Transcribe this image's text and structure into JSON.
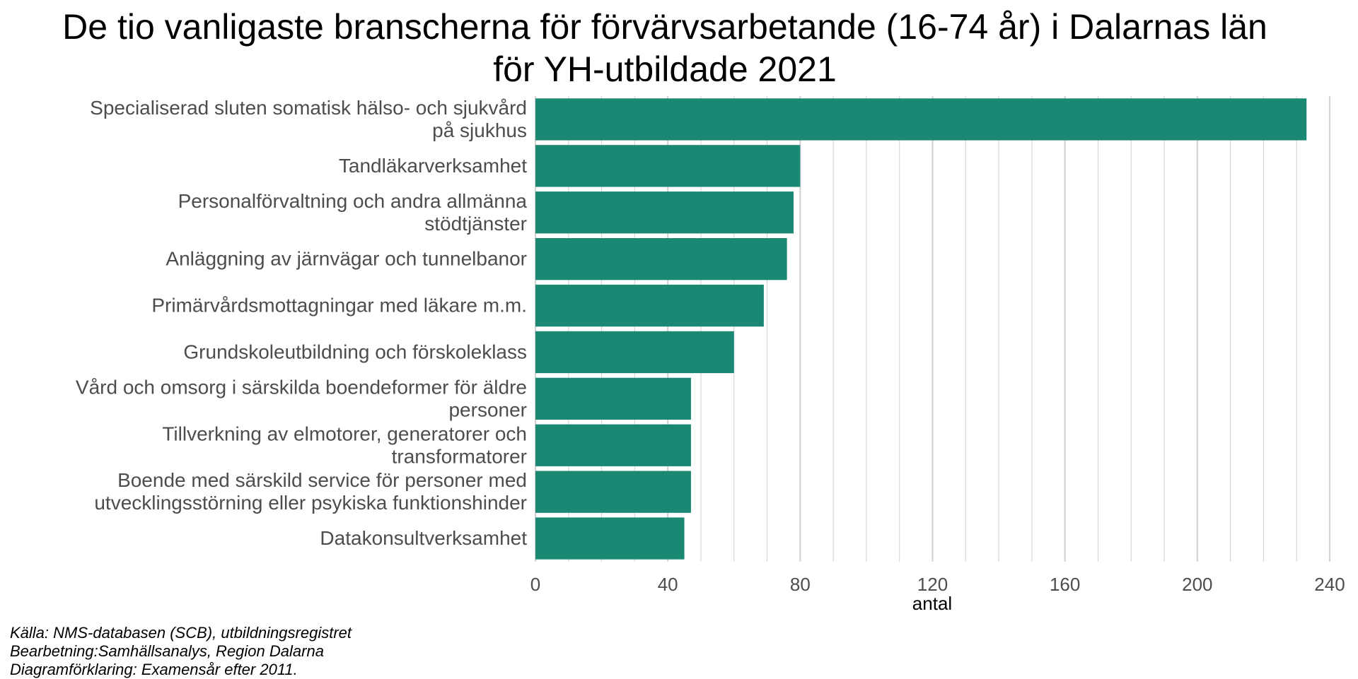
{
  "title_line1": "De tio vanligaste branscherna för förvärvsarbetande (16-74 år) i Dalarnas län",
  "title_line2": "för YH-utbildade 2021",
  "caption": {
    "line1": "Källa: NMS-databasen (SCB), utbildningsregistret",
    "line2": "Bearbetning:Samhällsanalys, Region Dalarna",
    "line3": "Diagramförklaring: Examensår efter 2011."
  },
  "colors": {
    "bar": "#1a8872",
    "grid": "#d4d4d4",
    "axis_text": "#4d4d4d"
  },
  "chart_data": {
    "type": "bar",
    "orientation": "horizontal",
    "categories": [
      [
        "Specialiserad sluten somatisk hälso- och sjukvård",
        "på sjukhus"
      ],
      [
        "Tandläkarverksamhet"
      ],
      [
        "Personalförvaltning och andra allmänna",
        "stödtjänster"
      ],
      [
        "Anläggning av järnvägar och tunnelbanor"
      ],
      [
        "Primärvårdsmottagningar med läkare m.m."
      ],
      [
        "Grundskoleutbildning och förskoleklass"
      ],
      [
        "Vård och omsorg i särskilda boendeformer för äldre",
        "personer"
      ],
      [
        "Tillverkning av elmotorer, generatorer och",
        "transformatorer"
      ],
      [
        "Boende med särskild service för personer med",
        "utvecklingsstörning eller psykiska funktionshinder"
      ],
      [
        "Datakonsultverksamhet"
      ]
    ],
    "values": [
      233,
      80,
      78,
      76,
      69,
      60,
      47,
      47,
      47,
      45
    ],
    "xlabel": "antal",
    "ylabel": "",
    "xlim": [
      0,
      240
    ],
    "xticks": [
      0,
      40,
      80,
      120,
      160,
      200,
      240
    ],
    "grid": true,
    "legend": "none"
  }
}
